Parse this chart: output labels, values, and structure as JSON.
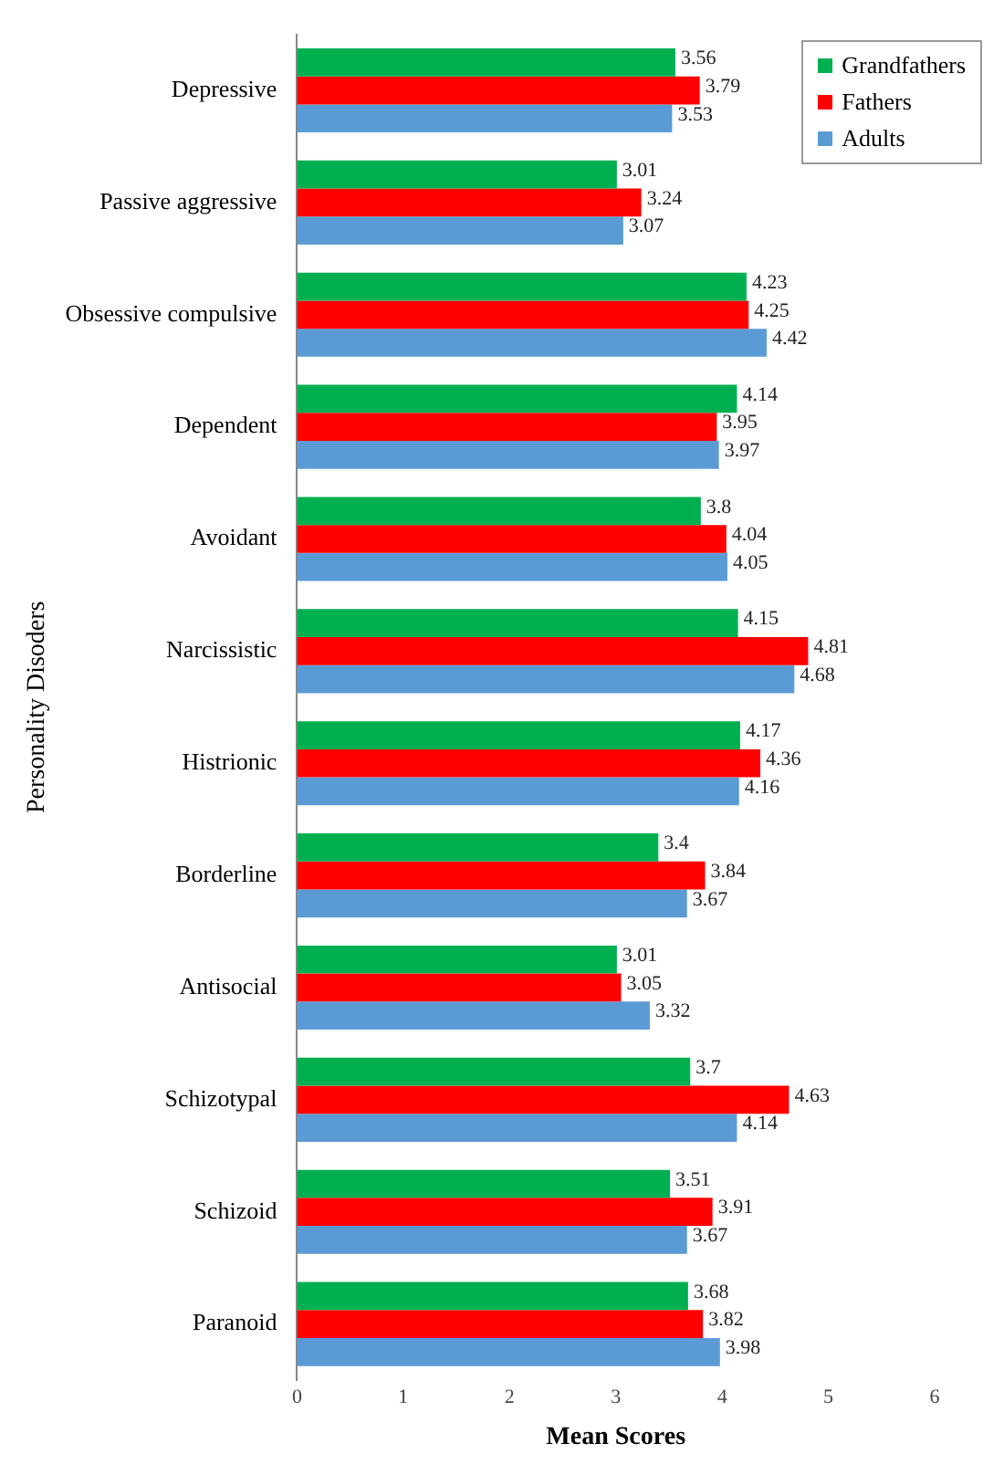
{
  "chart_data": {
    "type": "bar",
    "orientation": "horizontal",
    "xlabel": "Mean Scores",
    "ylabel": "Personality Disoders",
    "categories": [
      "Depressive",
      "Passive aggressive",
      "Obsessive compulsive",
      "Dependent",
      "Avoidant",
      "Narcissistic",
      "Histrionic",
      "Borderline",
      "Antisocial",
      "Schizotypal",
      "Schizoid",
      "Paranoid"
    ],
    "series": [
      {
        "name": "Grandfathers",
        "color": "#00b050",
        "values": [
          3.56,
          3.01,
          4.23,
          4.14,
          3.8,
          4.15,
          4.17,
          3.4,
          3.01,
          3.7,
          3.51,
          3.68
        ]
      },
      {
        "name": "Fathers",
        "color": "#ff0000",
        "values": [
          3.79,
          3.24,
          4.25,
          3.95,
          4.04,
          4.81,
          4.36,
          3.84,
          3.05,
          4.63,
          3.91,
          3.82
        ]
      },
      {
        "name": "Adults",
        "color": "#5b9bd5",
        "values": [
          3.53,
          3.07,
          4.42,
          3.97,
          4.05,
          4.68,
          4.16,
          3.67,
          3.32,
          4.14,
          3.67,
          3.98
        ]
      }
    ],
    "xlim": [
      0,
      6
    ],
    "xticks": [
      0,
      1,
      2,
      3,
      4,
      5,
      6
    ],
    "data_labels": true,
    "grid": false,
    "legend": "top right"
  }
}
